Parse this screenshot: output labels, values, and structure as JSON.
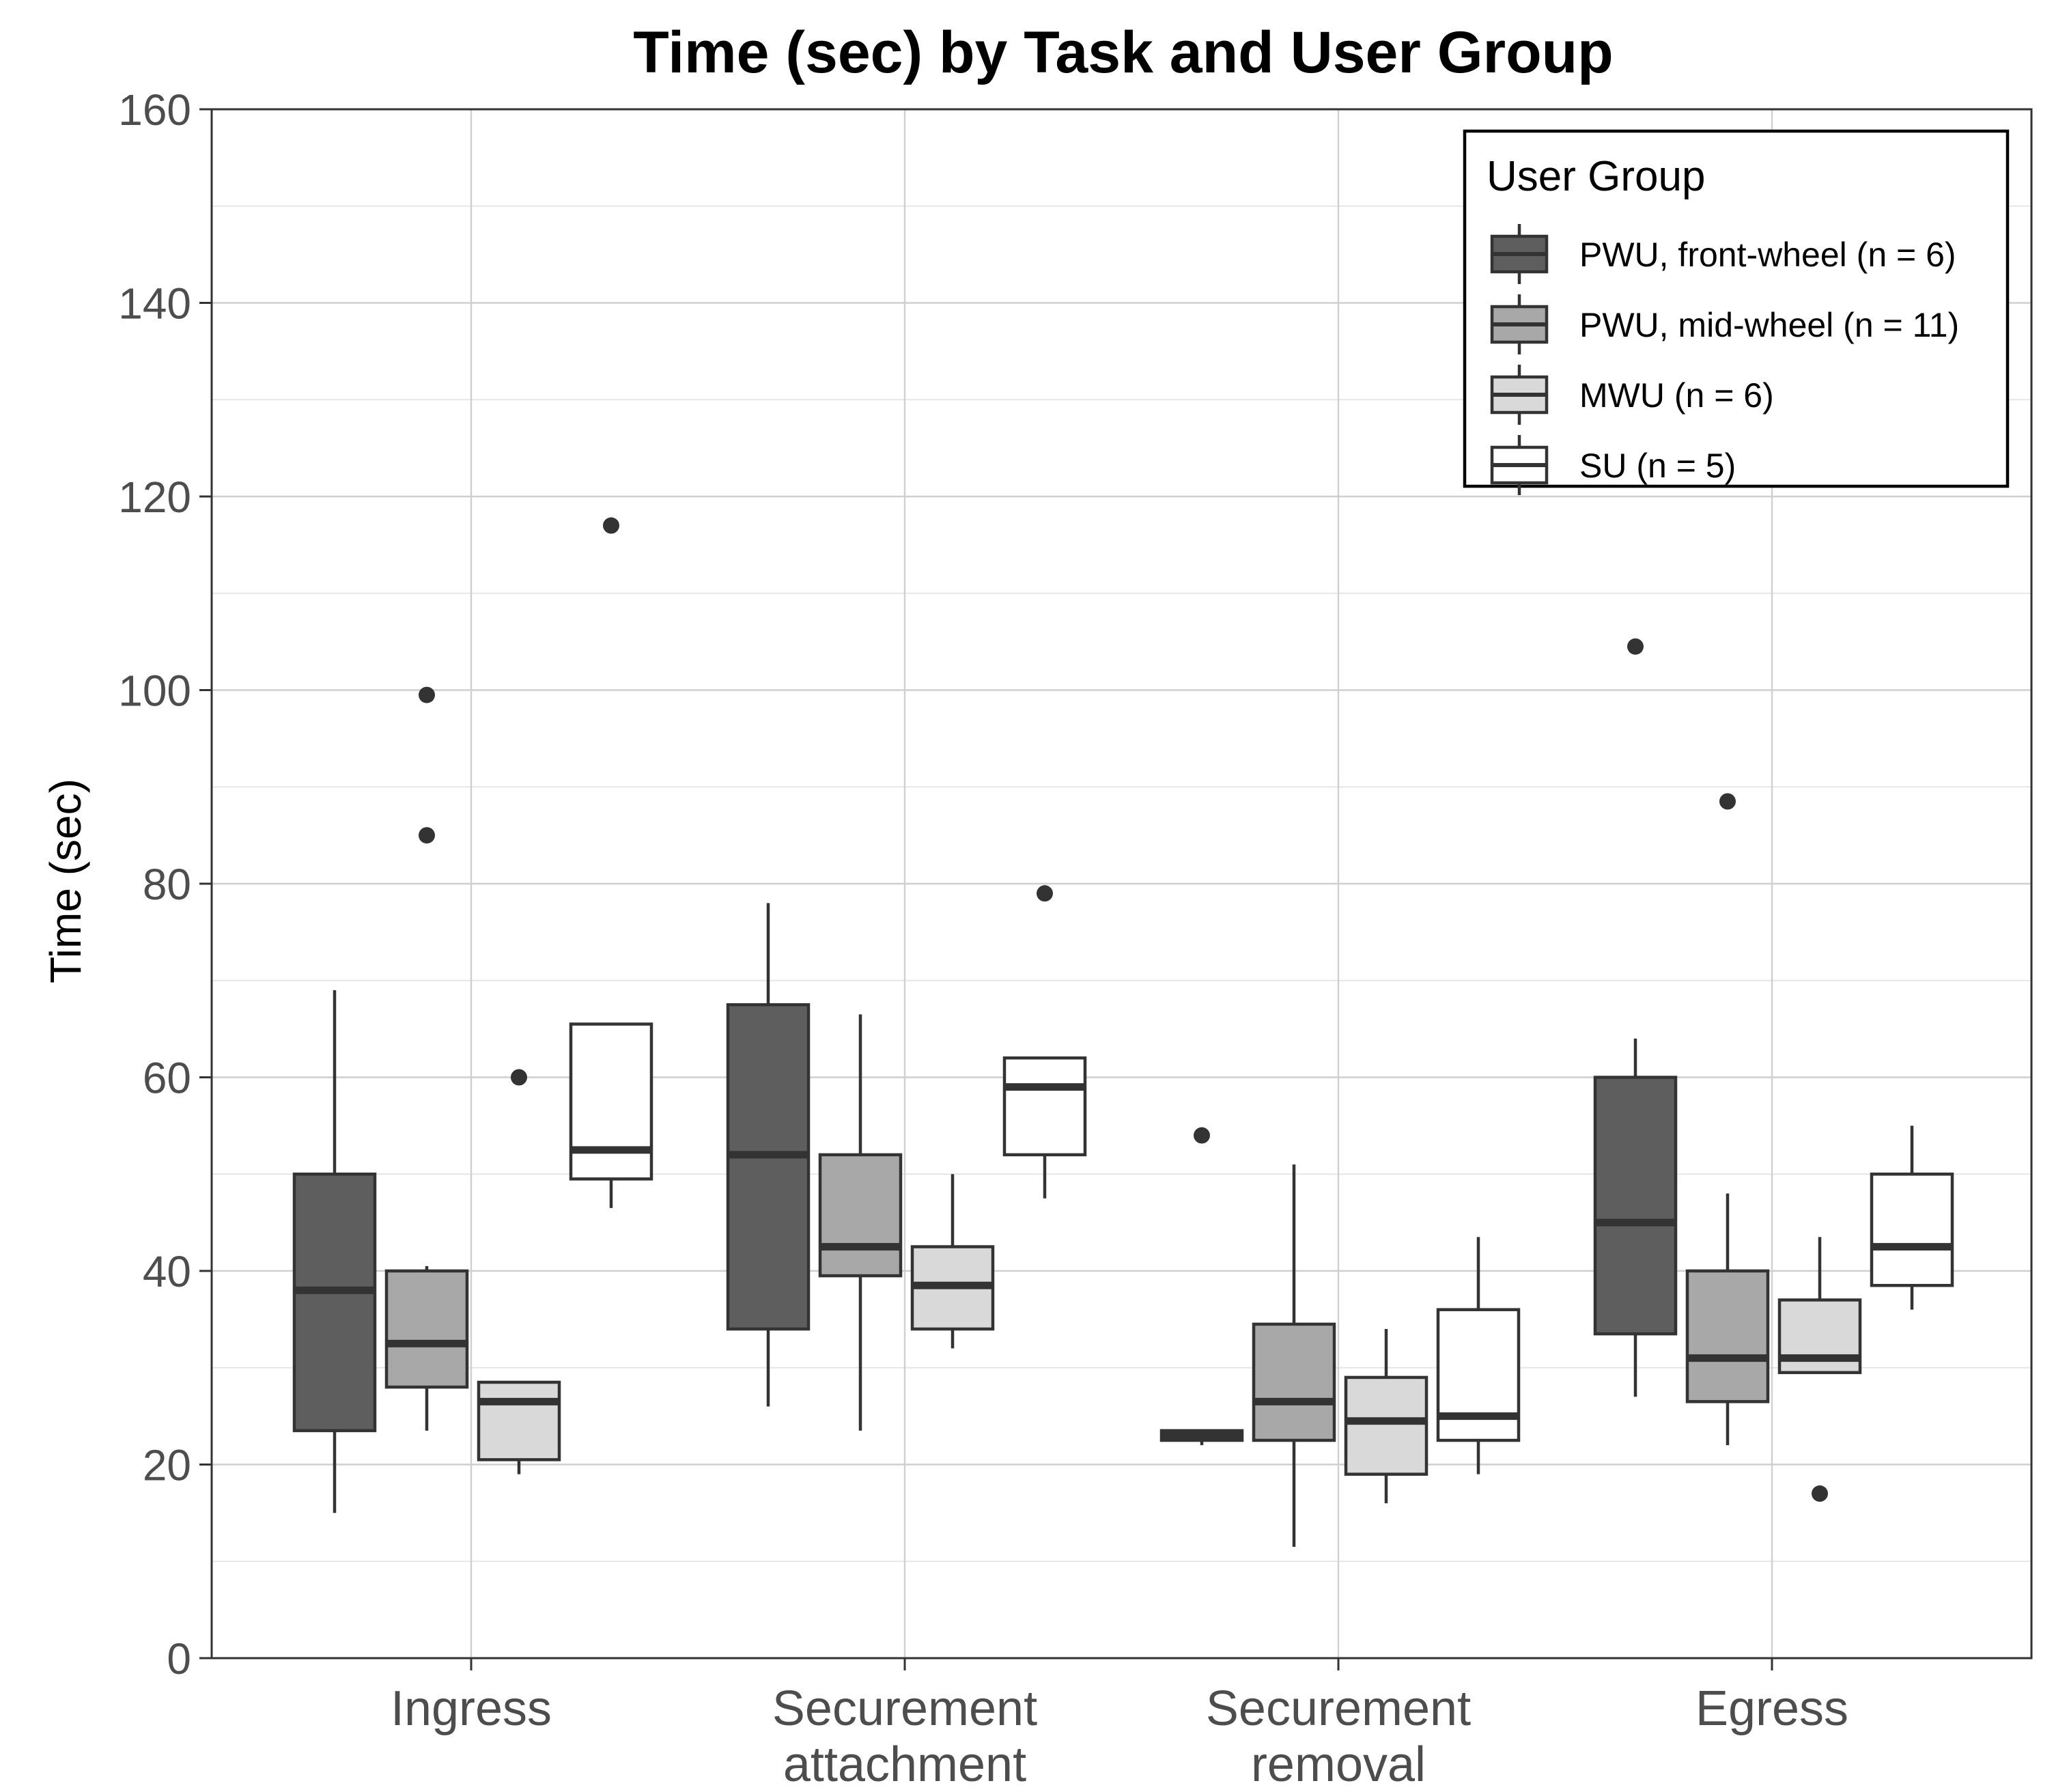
{
  "chart_data": {
    "type": "boxplot",
    "title": "Time (sec) by Task and User Group",
    "xlabel": "",
    "ylabel": "Time (sec)",
    "ylim": [
      0,
      160
    ],
    "yticks": [
      0,
      20,
      40,
      60,
      80,
      100,
      120,
      140,
      160
    ],
    "grid": true,
    "legend_position": "top-right",
    "categories": [
      {
        "lines": [
          "Ingress"
        ]
      },
      {
        "lines": [
          "Securement",
          "attachment"
        ]
      },
      {
        "lines": [
          "Securement",
          "removal"
        ]
      },
      {
        "lines": [
          "Egress"
        ]
      }
    ],
    "legend": {
      "title": "User Group",
      "items": [
        {
          "label": "PWU, front-wheel (n = 6)",
          "color": "#5e5e5e"
        },
        {
          "label": "PWU, mid-wheel (n = 11)",
          "color": "#a8a8a8"
        },
        {
          "label": "MWU (n = 6)",
          "color": "#d9d9d9"
        },
        {
          "label": "SU (n = 5)",
          "color": "#ffffff"
        }
      ]
    },
    "series": [
      {
        "name": "PWU, front-wheel (n = 6)",
        "color": "#5e5e5e",
        "boxes": [
          {
            "whisker_low": 15,
            "q1": 23.5,
            "median": 38,
            "q3": 50,
            "whisker_high": 69,
            "outliers": []
          },
          {
            "whisker_low": 26,
            "q1": 34,
            "median": 52,
            "q3": 67.5,
            "whisker_high": 78,
            "outliers": []
          },
          {
            "whisker_low": 22,
            "q1": 22.5,
            "median": 23,
            "q3": 23.5,
            "whisker_high": 23.5,
            "outliers": [
              54
            ]
          },
          {
            "whisker_low": 27,
            "q1": 33.5,
            "median": 45,
            "q3": 60,
            "whisker_high": 64,
            "outliers": [
              104.5
            ]
          }
        ]
      },
      {
        "name": "PWU, mid-wheel (n = 11)",
        "color": "#a8a8a8",
        "boxes": [
          {
            "whisker_low": 23.5,
            "q1": 28,
            "median": 32.5,
            "q3": 40,
            "whisker_high": 40.5,
            "outliers": [
              85,
              99.5
            ]
          },
          {
            "whisker_low": 23.5,
            "q1": 39.5,
            "median": 42.5,
            "q3": 52,
            "whisker_high": 66.5,
            "outliers": []
          },
          {
            "whisker_low": 11.5,
            "q1": 22.5,
            "median": 26.5,
            "q3": 34.5,
            "whisker_high": 51,
            "outliers": []
          },
          {
            "whisker_low": 22,
            "q1": 26.5,
            "median": 31,
            "q3": 40,
            "whisker_high": 48,
            "outliers": [
              88.5
            ]
          }
        ]
      },
      {
        "name": "MWU (n = 6)",
        "color": "#d9d9d9",
        "boxes": [
          {
            "whisker_low": 19,
            "q1": 20.5,
            "median": 26.5,
            "q3": 28.5,
            "whisker_high": 28.5,
            "outliers": [
              60
            ]
          },
          {
            "whisker_low": 32,
            "q1": 34,
            "median": 38.5,
            "q3": 42.5,
            "whisker_high": 50,
            "outliers": []
          },
          {
            "whisker_low": 16,
            "q1": 19,
            "median": 24.5,
            "q3": 29,
            "whisker_high": 34,
            "outliers": []
          },
          {
            "whisker_low": 29.5,
            "q1": 29.5,
            "median": 31,
            "q3": 37,
            "whisker_high": 43.5,
            "outliers": [
              17
            ]
          }
        ]
      },
      {
        "name": "SU (n = 5)",
        "color": "#ffffff",
        "boxes": [
          {
            "whisker_low": 46.5,
            "q1": 49.5,
            "median": 52.5,
            "q3": 65.5,
            "whisker_high": 65.5,
            "outliers": [
              117
            ]
          },
          {
            "whisker_low": 47.5,
            "q1": 52,
            "median": 59,
            "q3": 62,
            "whisker_high": 62,
            "outliers": [
              79
            ]
          },
          {
            "whisker_low": 19,
            "q1": 22.5,
            "median": 25,
            "q3": 36,
            "whisker_high": 43.5,
            "outliers": []
          },
          {
            "whisker_low": 36,
            "q1": 38.5,
            "median": 42.5,
            "q3": 50,
            "whisker_high": 55,
            "outliers": []
          }
        ]
      }
    ]
  }
}
